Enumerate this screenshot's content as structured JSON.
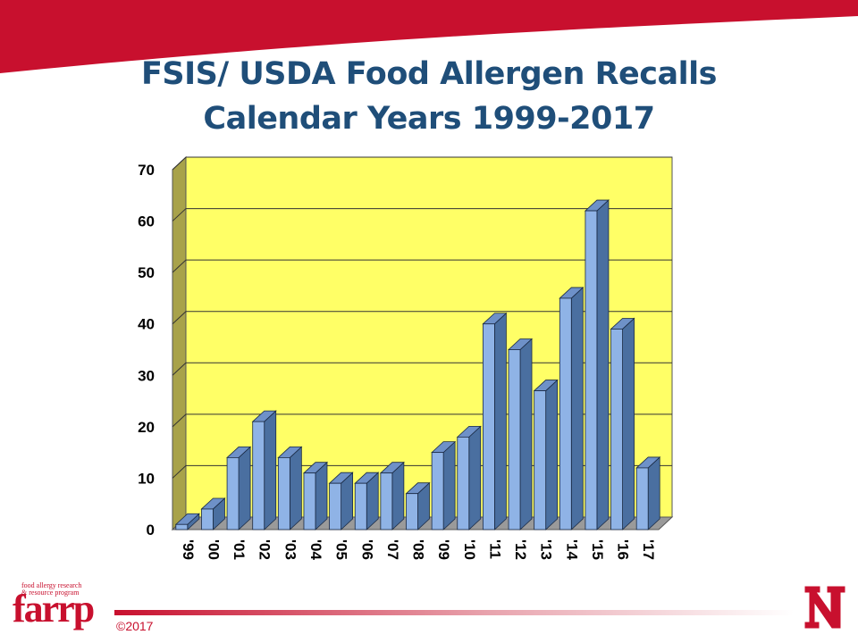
{
  "slide": {
    "title_line1": "FSIS/ USDA Food Allergen Recalls",
    "title_line2": "Calendar Years 1999-2017",
    "copyright": "©2017",
    "logo_word": "farrp",
    "logo_tagline": "food allergy research\n& resource program",
    "university_logo_icon": "nebraska-n-icon",
    "colors": {
      "banner": "#c8102e",
      "title": "#1f4e79",
      "plot_background": "#ffff66",
      "bar_front": "#8fb3e6",
      "bar_side": "#4a6fa0",
      "bar_top": "#6e91c8",
      "wall_left": "#a8a24a",
      "brand_red": "#c8102e"
    }
  },
  "chart_data": {
    "type": "bar",
    "title": "FSIS/ USDA Food Allergen Recalls Calendar Years 1999-2017",
    "xlabel": "",
    "ylabel": "",
    "categories": [
      "'99",
      "'00",
      "'01",
      "'02",
      "'03",
      "'04",
      "'05",
      "'06",
      "'07",
      "'08",
      "'09",
      "'10",
      "'11",
      "'12",
      "'13",
      "'14",
      "'15",
      "'16",
      "'17"
    ],
    "values": [
      1,
      4,
      14,
      21,
      14,
      11,
      9,
      9,
      11,
      7,
      15,
      18,
      40,
      35,
      27,
      45,
      62,
      39,
      12
    ],
    "ylim": [
      0,
      70
    ],
    "yticks": [
      0,
      10,
      20,
      30,
      40,
      50,
      60,
      70
    ],
    "grid": true,
    "style": "3d-column"
  }
}
